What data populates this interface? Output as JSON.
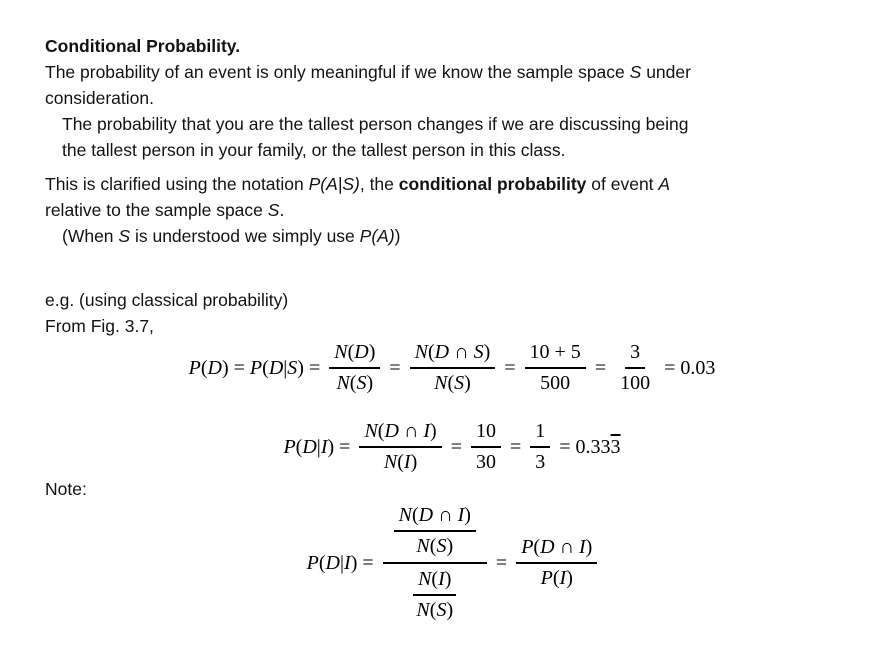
{
  "page": {
    "background": "#ffffff",
    "text_color": "#121212",
    "math_color": "#000000"
  },
  "content": {
    "title": "Conditional Probability.",
    "p1": {
      "r1": "The probability of an event is only meaningful if we know the sample space ",
      "r2": "S",
      "r3": " under",
      "line2": "consideration."
    },
    "p2": {
      "line1": "The probability that you are the tallest person changes if we are discussing being",
      "line2": "the tallest person in your family, or the tallest person in this class."
    },
    "p3": {
      "r1": "This is clarified using the notation ",
      "r2": "P(A|S)",
      "r3": ", the ",
      "r4": "conditional probability",
      "r5": " of event ",
      "r6": "A",
      "l2r1": "relative to the sample space ",
      "l2r2": "S",
      "l2r3": "."
    },
    "p4": {
      "r1": "(When ",
      "r2": "S",
      "r3": " is understood we simply use ",
      "r4": "P(A)",
      "r5": ")"
    },
    "p5": "e.g. (using classical probability)",
    "p6": "From Fig. 3.7,",
    "note": "Note:"
  },
  "math": {
    "eq": "=",
    "f1": {
      "lhs": "P(D) = P(D|S) =",
      "frac1": {
        "num": "N(D)",
        "den": "N(S)"
      },
      "frac2": {
        "num": "N(D ∩ S)",
        "den": "N(S)"
      },
      "frac3": {
        "num": "10 + 5",
        "den": "500"
      },
      "frac4": {
        "num": "3",
        "den": "100"
      },
      "result": "= 0.03"
    },
    "f2": {
      "lhs": "P(D|I)  =",
      "frac1": {
        "num": "N(D ∩ I)",
        "den": "N(I)"
      },
      "frac2": {
        "num": "10",
        "den": "30"
      },
      "frac3": {
        "num": "1",
        "den": "3"
      },
      "result_pre": "= 0.33",
      "result_bar": "3"
    },
    "f3": {
      "lhs": "P(D|I) =",
      "top": {
        "num": "N(D ∩ I)",
        "den": "N(S)"
      },
      "bottom": {
        "num": "N(I)",
        "den": "N(S)"
      },
      "frac2": {
        "num": "P(D ∩ I)",
        "den": "P(I)"
      }
    }
  }
}
